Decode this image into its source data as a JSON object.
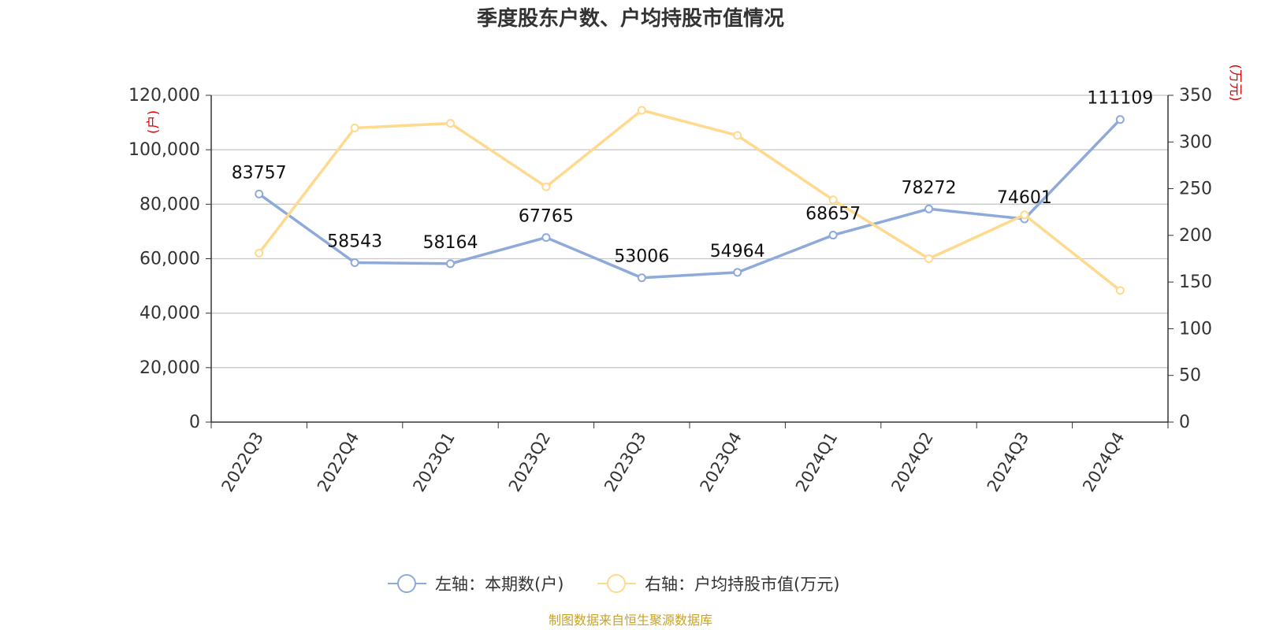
{
  "chart_data": {
    "type": "line",
    "title": "季度股东户数、户均持股市值情况",
    "categories": [
      "2022Q3",
      "2022Q4",
      "2023Q1",
      "2023Q2",
      "2023Q3",
      "2023Q4",
      "2024Q1",
      "2024Q2",
      "2024Q3",
      "2024Q4"
    ],
    "series": [
      {
        "name": "左轴：本期数(户)",
        "axis": "left",
        "color": "#8eaadb",
        "values": [
          83757,
          58543,
          58164,
          67765,
          53006,
          54964,
          68657,
          78272,
          74601,
          111109
        ],
        "data_labels": [
          "83757",
          "58543",
          "58164",
          "67765",
          "53006",
          "54964",
          "68657",
          "78272",
          "74601",
          "111109"
        ]
      },
      {
        "name": "右轴：户均持股市值(万元)",
        "axis": "right",
        "color": "#ffd98e",
        "values": [
          181,
          315,
          320,
          252,
          334,
          307,
          238,
          175,
          222,
          141
        ]
      }
    ],
    "y_left": {
      "unit": "(户)",
      "ylim": [
        0,
        120000
      ],
      "ticks": [
        "0",
        "20,000",
        "40,000",
        "60,000",
        "80,000",
        "100,000",
        "120,000"
      ]
    },
    "y_right": {
      "unit": "(万元)",
      "ylim": [
        0,
        350
      ],
      "ticks": [
        "0",
        "50",
        "100",
        "150",
        "200",
        "250",
        "300",
        "350"
      ]
    },
    "grid": true,
    "legend_position": "bottom-center",
    "source": "制图数据来自恒生聚源数据库"
  }
}
